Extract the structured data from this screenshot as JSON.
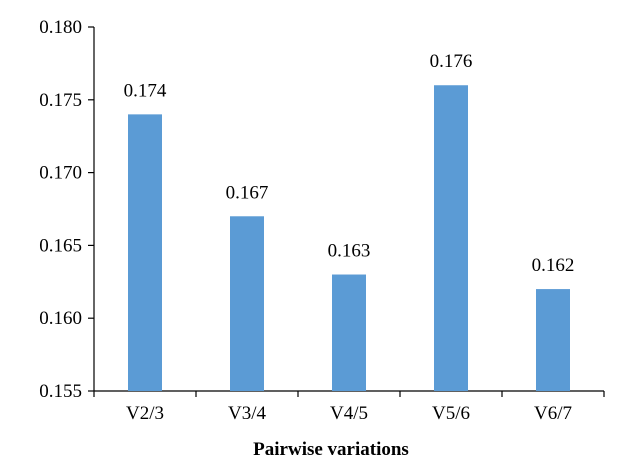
{
  "chart_data": {
    "type": "bar",
    "categories": [
      "V2/3",
      "V3/4",
      "V4/5",
      "V5/6",
      "V6/7"
    ],
    "values": [
      0.174,
      0.167,
      0.163,
      0.176,
      0.162
    ],
    "data_labels": [
      "0.174",
      "0.167",
      "0.163",
      "0.176",
      "0.162"
    ],
    "xlabel": "Pairwise variations",
    "ylabel": "",
    "ylim": [
      0.155,
      0.18
    ],
    "yticks": [
      0.155,
      0.16,
      0.165,
      0.17,
      0.175,
      0.18
    ],
    "ytick_labels": [
      "0.155",
      "0.160",
      "0.165",
      "0.170",
      "0.175",
      "0.180"
    ],
    "grid": false,
    "legend": "none",
    "bar_color": "#5B9BD5"
  }
}
